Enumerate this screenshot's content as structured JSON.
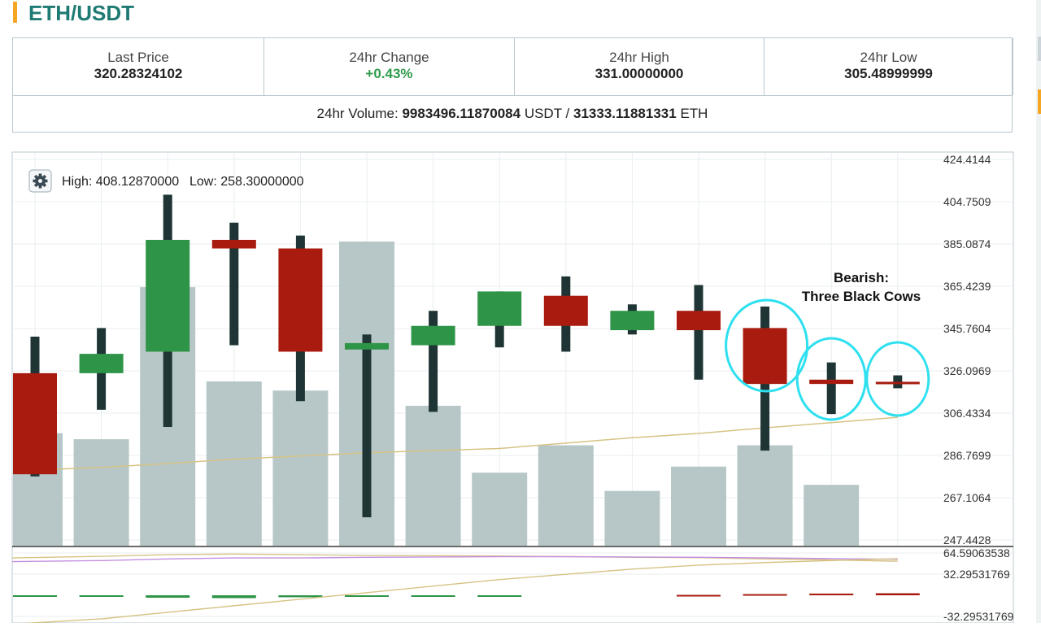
{
  "header": {
    "pair": "ETH/USDT"
  },
  "stats": [
    {
      "label": "Last Price",
      "value": "320.28324102",
      "trend": "neutral"
    },
    {
      "label": "24hr Change",
      "value": "+0.43%",
      "trend": "up"
    },
    {
      "label": "24hr High",
      "value": "331.00000000",
      "trend": "neutral"
    },
    {
      "label": "24hr Low",
      "value": "305.48999999",
      "trend": "neutral"
    }
  ],
  "volume": {
    "prefix": "24hr Volume:",
    "usdt_value": "9983496.11870084",
    "usdt_unit": "USDT",
    "separator": "/",
    "eth_value": "31333.11881331",
    "eth_unit": "ETH"
  },
  "chart_info": {
    "high_label": "High: 408.12870000",
    "low_label": "Low: 258.30000000"
  },
  "annotation": {
    "line1": "Bearish:",
    "line2": "Three Black Cows"
  },
  "colors": {
    "up": "#2e9447",
    "down": "#a81b0e",
    "wick": "#1f3535",
    "volume": "#b7c7c8",
    "ma_gold": "#d6c384",
    "ma_purple": "#c48fe0",
    "highlight": "#2ee0ef",
    "grid": "#e9eeef",
    "border": "#b9c8cf",
    "title": "#1e7b73"
  },
  "chart_data": {
    "type": "candlestick",
    "price_axis_ticks": [
      "424.4144",
      "404.7509",
      "385.0874",
      "365.4239",
      "345.7604",
      "326.0969",
      "306.4334",
      "286.7699",
      "267.1064",
      "247.4428"
    ],
    "price_axis_range": [
      247.4428,
      424.4144
    ],
    "candles": [
      {
        "open": 325,
        "close": 278,
        "high": 342,
        "low": 277
      },
      {
        "open": 325,
        "close": 334,
        "high": 346,
        "low": 308
      },
      {
        "open": 335,
        "close": 387,
        "high": 408,
        "low": 300
      },
      {
        "open": 387,
        "close": 383,
        "high": 395,
        "low": 338
      },
      {
        "open": 383,
        "close": 335,
        "high": 389,
        "low": 312
      },
      {
        "open": 336,
        "close": 339,
        "high": 343,
        "low": 258
      },
      {
        "open": 338,
        "close": 347,
        "high": 354,
        "low": 307
      },
      {
        "open": 347,
        "close": 363,
        "high": 363,
        "low": 337
      },
      {
        "open": 361,
        "close": 347,
        "high": 370,
        "low": 335
      },
      {
        "open": 345,
        "close": 354,
        "high": 357,
        "low": 343
      },
      {
        "open": 354,
        "close": 345,
        "high": 366,
        "low": 322
      },
      {
        "open": 346,
        "close": 320,
        "high": 356,
        "low": 289
      },
      {
        "open": 322,
        "close": 320,
        "high": 330,
        "low": 306
      },
      {
        "open": 321,
        "close": 320,
        "high": 324,
        "low": 318
      }
    ],
    "volume_relative": [
      0.37,
      0.35,
      0.85,
      0.54,
      0.51,
      1.0,
      0.46,
      0.24,
      0.33,
      0.18,
      0.26,
      0.33,
      0.2,
      0.0
    ],
    "moving_average": [
      280.0,
      281.2,
      283.0,
      285.0,
      286.5,
      288.0,
      289.0,
      290.0,
      292.5,
      295.0,
      297.0,
      299.6,
      302.0,
      304.5
    ],
    "indicator_axis_ticks": [
      "64.59063538",
      "32.29531769",
      "-32.29531769"
    ],
    "indicator_axis_range": [
      -32.29531769,
      64.59063538
    ],
    "macd_histogram": [
      -2.3,
      -2.5,
      -3.7,
      -4.3,
      -3.0,
      -2.0,
      -1.5,
      -1.0,
      0.0,
      0.0,
      0.6,
      1.8,
      2.6,
      3.1
    ],
    "indicator_lines": [
      {
        "color": "gold",
        "values": [
          57.0,
          59.5,
          62.0,
          63.0,
          62.0,
          61.0,
          60.5,
          60.0,
          59.0,
          58.0,
          57.5,
          55.5,
          54.0,
          52.0
        ]
      },
      {
        "color": "purple",
        "values": [
          51.5,
          53.0,
          55.5,
          57.0,
          57.0,
          58.0,
          58.5,
          59.0,
          59.0,
          58.5,
          58.0,
          57.0,
          56.0,
          55.0
        ]
      },
      {
        "color": "gold",
        "values": [
          -44,
          -36,
          -26,
          -16,
          -6,
          4,
          14,
          24,
          32,
          40,
          46,
          50,
          53,
          56
        ]
      }
    ],
    "highlighted_candles": [
      11,
      12,
      13
    ]
  }
}
